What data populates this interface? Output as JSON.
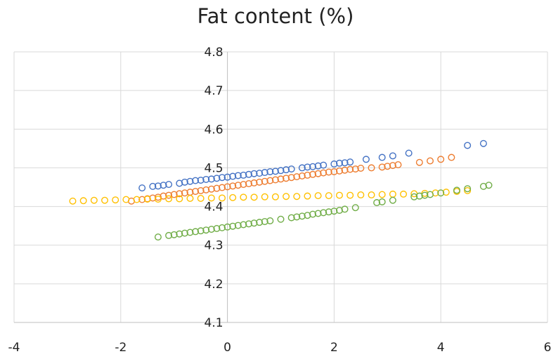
{
  "chart_data": {
    "type": "scatter",
    "title": "Fat content (%)",
    "xlabel": "",
    "ylabel": "",
    "xlim": [
      -4,
      6
    ],
    "ylim": [
      4.1,
      4.8
    ],
    "xticks": [
      "-4",
      "-2",
      "0",
      "2",
      "4",
      "6"
    ],
    "yticks": [
      "4.1",
      "4.2",
      "4.3",
      "4.4",
      "4.5",
      "4.6",
      "4.7",
      "4.8"
    ],
    "grid": true,
    "legend": "none",
    "marker": "hollow-circle",
    "series": [
      {
        "color": "#4472C4",
        "x": [
          -1.6,
          -1.4,
          -1.3,
          -1.2,
          -1.1,
          -0.9,
          -0.8,
          -0.7,
          -0.6,
          -0.5,
          -0.4,
          -0.3,
          -0.2,
          -0.1,
          0.0,
          0.1,
          0.2,
          0.3,
          0.4,
          0.5,
          0.6,
          0.7,
          0.8,
          0.9,
          1.0,
          1.1,
          1.2,
          1.4,
          1.5,
          1.6,
          1.7,
          1.8,
          2.0,
          2.1,
          2.2,
          2.3,
          2.6,
          2.9,
          3.1,
          3.4,
          4.5,
          4.8
        ],
        "y": [
          4.448,
          4.452,
          4.453,
          4.455,
          4.457,
          4.46,
          4.463,
          4.465,
          4.467,
          4.468,
          4.47,
          4.471,
          4.473,
          4.475,
          4.476,
          4.478,
          4.48,
          4.481,
          4.483,
          4.485,
          4.486,
          4.488,
          4.49,
          4.491,
          4.493,
          4.495,
          4.497,
          4.5,
          4.502,
          4.503,
          4.505,
          4.507,
          4.51,
          4.512,
          4.513,
          4.515,
          4.522,
          4.527,
          4.531,
          4.538,
          4.558,
          4.563
        ]
      },
      {
        "color": "#ED7D31",
        "x": [
          -1.8,
          -1.6,
          -1.5,
          -1.4,
          -1.3,
          -1.2,
          -1.1,
          -1.0,
          -0.9,
          -0.8,
          -0.7,
          -0.6,
          -0.5,
          -0.4,
          -0.3,
          -0.2,
          -0.1,
          0.0,
          0.1,
          0.2,
          0.3,
          0.4,
          0.5,
          0.6,
          0.7,
          0.8,
          0.9,
          1.0,
          1.1,
          1.2,
          1.3,
          1.4,
          1.5,
          1.6,
          1.7,
          1.8,
          1.9,
          2.0,
          2.1,
          2.2,
          2.3,
          2.4,
          2.5,
          2.7,
          2.9,
          3.0,
          3.1,
          3.2,
          3.6,
          3.8,
          4.0,
          4.2
        ],
        "y": [
          4.414,
          4.418,
          4.42,
          4.422,
          4.424,
          4.427,
          4.429,
          4.431,
          4.433,
          4.435,
          4.437,
          4.439,
          4.441,
          4.443,
          4.445,
          4.447,
          4.449,
          4.451,
          4.453,
          4.455,
          4.457,
          4.459,
          4.461,
          4.463,
          4.465,
          4.467,
          4.469,
          4.471,
          4.473,
          4.475,
          4.477,
          4.479,
          4.481,
          4.483,
          4.485,
          4.487,
          4.489,
          4.49,
          4.492,
          4.494,
          4.496,
          4.497,
          4.499,
          4.5,
          4.502,
          4.504,
          4.506,
          4.508,
          4.514,
          4.518,
          4.522,
          4.527
        ]
      },
      {
        "color": "#FFC000",
        "x": [
          -2.9,
          -2.7,
          -2.5,
          -2.3,
          -2.1,
          -1.9,
          -1.7,
          -1.5,
          -1.3,
          -1.1,
          -0.9,
          -0.7,
          -0.5,
          -0.3,
          -0.1,
          0.1,
          0.3,
          0.5,
          0.7,
          0.9,
          1.1,
          1.3,
          1.5,
          1.7,
          1.9,
          2.1,
          2.3,
          2.5,
          2.7,
          2.9,
          3.1,
          3.3,
          3.5,
          3.7,
          3.9,
          4.1,
          4.3,
          4.5
        ],
        "y": [
          4.414,
          4.415,
          4.416,
          4.416,
          4.417,
          4.418,
          4.418,
          4.419,
          4.419,
          4.42,
          4.42,
          4.421,
          4.421,
          4.422,
          4.422,
          4.423,
          4.424,
          4.424,
          4.425,
          4.425,
          4.426,
          4.426,
          4.427,
          4.428,
          4.428,
          4.429,
          4.429,
          4.43,
          4.43,
          4.431,
          4.432,
          4.432,
          4.433,
          4.434,
          4.435,
          4.437,
          4.439,
          4.441
        ]
      },
      {
        "color": "#70AD47",
        "x": [
          -1.3,
          -1.1,
          -1.0,
          -0.9,
          -0.8,
          -0.7,
          -0.6,
          -0.5,
          -0.4,
          -0.3,
          -0.2,
          -0.1,
          0.0,
          0.1,
          0.2,
          0.3,
          0.4,
          0.5,
          0.6,
          0.7,
          0.8,
          1.0,
          1.2,
          1.3,
          1.4,
          1.5,
          1.6,
          1.7,
          1.8,
          1.9,
          2.0,
          2.1,
          2.2,
          2.4,
          2.8,
          2.9,
          3.1,
          3.5,
          3.6,
          3.7,
          3.8,
          4.0,
          4.3,
          4.5,
          4.8,
          4.9
        ],
        "y": [
          4.321,
          4.325,
          4.327,
          4.329,
          4.331,
          4.333,
          4.335,
          4.337,
          4.339,
          4.341,
          4.343,
          4.345,
          4.347,
          4.349,
          4.351,
          4.353,
          4.355,
          4.357,
          4.359,
          4.361,
          4.363,
          4.367,
          4.371,
          4.373,
          4.375,
          4.377,
          4.38,
          4.382,
          4.384,
          4.386,
          4.388,
          4.39,
          4.393,
          4.397,
          4.41,
          4.412,
          4.416,
          4.425,
          4.427,
          4.429,
          4.431,
          4.435,
          4.442,
          4.446,
          4.452,
          4.455
        ]
      }
    ]
  }
}
